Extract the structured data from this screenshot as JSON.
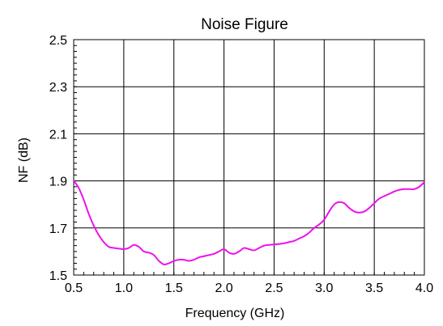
{
  "chart_data": {
    "type": "line",
    "title": "Noise Figure",
    "xlabel": "Frequency (GHz)",
    "ylabel": "NF (dB)",
    "xlim": [
      0.5,
      4.0
    ],
    "ylim": [
      1.5,
      2.5
    ],
    "x_ticks": [
      "0.5",
      "1.0",
      "1.5",
      "2.0",
      "2.5",
      "3.0",
      "3.5",
      "4.0"
    ],
    "y_ticks": [
      "2.5",
      "2.3",
      "2.1",
      "1.9",
      "1.7",
      "1.5"
    ],
    "grid": true,
    "series": [
      {
        "color": "#ee11ee",
        "x": [
          0.5,
          0.55,
          0.6,
          0.65,
          0.7,
          0.75,
          0.8,
          0.85,
          0.9,
          0.95,
          1.0,
          1.05,
          1.1,
          1.15,
          1.2,
          1.25,
          1.3,
          1.35,
          1.4,
          1.45,
          1.5,
          1.55,
          1.6,
          1.65,
          1.7,
          1.75,
          1.8,
          1.85,
          1.9,
          1.95,
          2.0,
          2.05,
          2.1,
          2.15,
          2.2,
          2.25,
          2.3,
          2.35,
          2.4,
          2.45,
          2.5,
          2.55,
          2.6,
          2.65,
          2.7,
          2.75,
          2.8,
          2.85,
          2.9,
          2.95,
          3.0,
          3.05,
          3.1,
          3.15,
          3.2,
          3.25,
          3.3,
          3.35,
          3.4,
          3.45,
          3.5,
          3.55,
          3.6,
          3.65,
          3.7,
          3.75,
          3.8,
          3.85,
          3.9,
          3.95,
          4.0
        ],
        "y": [
          1.9,
          1.87,
          1.82,
          1.76,
          1.71,
          1.67,
          1.64,
          1.62,
          1.615,
          1.612,
          1.61,
          1.615,
          1.628,
          1.62,
          1.6,
          1.595,
          1.585,
          1.56,
          1.545,
          1.55,
          1.56,
          1.565,
          1.565,
          1.56,
          1.565,
          1.575,
          1.58,
          1.585,
          1.59,
          1.6,
          1.61,
          1.595,
          1.59,
          1.6,
          1.615,
          1.61,
          1.605,
          1.615,
          1.625,
          1.628,
          1.63,
          1.632,
          1.635,
          1.64,
          1.645,
          1.655,
          1.665,
          1.68,
          1.7,
          1.715,
          1.735,
          1.77,
          1.8,
          1.81,
          1.805,
          1.785,
          1.77,
          1.765,
          1.77,
          1.785,
          1.805,
          1.825,
          1.835,
          1.845,
          1.855,
          1.862,
          1.865,
          1.865,
          1.865,
          1.875,
          1.895
        ]
      }
    ]
  }
}
